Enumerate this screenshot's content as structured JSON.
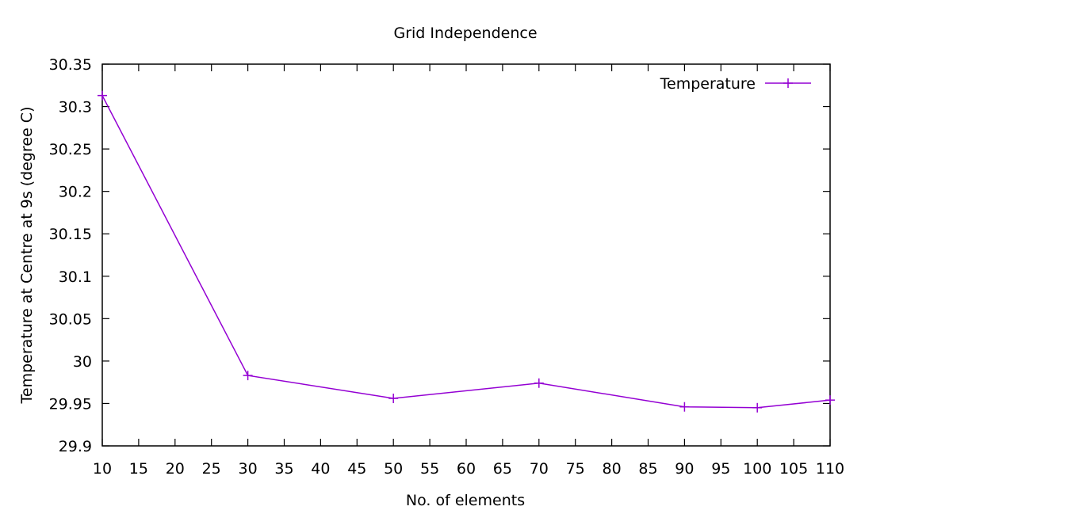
{
  "chart_data": {
    "type": "line",
    "title": "Grid Independence",
    "xlabel": "No. of elements",
    "ylabel": "Temperature at Centre at 9s (degree C)",
    "xlim": [
      10,
      110
    ],
    "ylim": [
      29.9,
      30.35
    ],
    "xticks": [
      "10",
      "15",
      "20",
      "25",
      "30",
      "35",
      "40",
      "45",
      "50",
      "55",
      "60",
      "65",
      "70",
      "75",
      "80",
      "85",
      "90",
      "95",
      "100",
      "105",
      "110"
    ],
    "yticks": [
      "29.9",
      "29.95",
      "30",
      "30.05",
      "30.1",
      "30.15",
      "30.2",
      "30.25",
      "30.3",
      "30.35"
    ],
    "grid": false,
    "legend_position": "top-right",
    "series": [
      {
        "name": "Temperature",
        "color": "#9400d3",
        "marker": "plus",
        "x": [
          10,
          30,
          50,
          70,
          90,
          100,
          110
        ],
        "y": [
          30.313,
          29.983,
          29.956,
          29.974,
          29.946,
          29.945,
          29.954
        ]
      }
    ]
  }
}
